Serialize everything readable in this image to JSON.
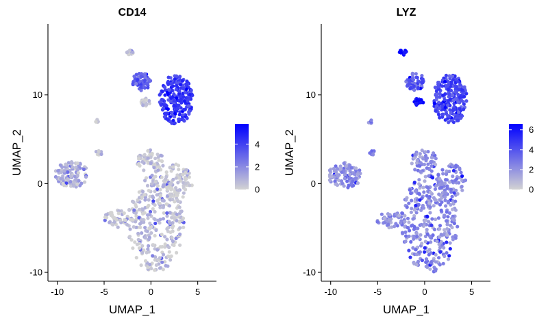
{
  "chart_data": [
    {
      "type": "scatter",
      "title": "CD14",
      "xlabel": "UMAP_1",
      "ylabel": "UMAP_2",
      "xlim": [
        -11,
        7
      ],
      "ylim": [
        -11,
        18
      ],
      "xticks": [
        -10,
        -5,
        0,
        5
      ],
      "xtick_labels": [
        "-10",
        "-5",
        "0",
        "5"
      ],
      "yticks": [
        -10,
        0,
        10
      ],
      "ytick_labels": [
        "-10",
        "0",
        "10"
      ],
      "legend": {
        "placement": "right",
        "min": 0,
        "max": 5.8,
        "ticks": [
          0,
          2,
          4
        ],
        "tick_labels": [
          "0",
          "2",
          "4"
        ],
        "low_color": "#d3d3d3",
        "high_color": "#0000ff"
      },
      "grid": false,
      "clusters": [
        {
          "cx": 0.5,
          "cy": -4.5,
          "rx": 3.0,
          "ry": 5.5,
          "n": 320,
          "expr": 0.05
        },
        {
          "cx": 2.8,
          "cy": 0.0,
          "rx": 1.6,
          "ry": 2.2,
          "n": 80,
          "expr": 0.05
        },
        {
          "cx": -3.5,
          "cy": -4.0,
          "rx": 1.6,
          "ry": 1.0,
          "n": 50,
          "expr": 0.05
        },
        {
          "cx": -8.5,
          "cy": 1.0,
          "rx": 1.8,
          "ry": 1.5,
          "n": 110,
          "expr": 0.15
        },
        {
          "cx": 0.0,
          "cy": 2.5,
          "rx": 1.5,
          "ry": 1.3,
          "n": 60,
          "expr": 0.05
        },
        {
          "cx": 2.7,
          "cy": 9.5,
          "rx": 1.8,
          "ry": 2.8,
          "n": 230,
          "expr": 0.72
        },
        {
          "cx": -1.0,
          "cy": 11.5,
          "rx": 1.0,
          "ry": 1.0,
          "n": 60,
          "expr": 0.55
        },
        {
          "cx": -0.6,
          "cy": 9.2,
          "rx": 0.5,
          "ry": 0.45,
          "n": 18,
          "expr": 0.08
        },
        {
          "cx": -2.3,
          "cy": 14.8,
          "rx": 0.4,
          "ry": 0.3,
          "n": 14,
          "expr": 0.05
        },
        {
          "cx": -5.5,
          "cy": 3.5,
          "rx": 0.4,
          "ry": 0.25,
          "n": 8,
          "expr": 0.05
        },
        {
          "cx": -5.8,
          "cy": 7.0,
          "rx": 0.2,
          "ry": 0.25,
          "n": 5,
          "expr": 0.05
        }
      ]
    },
    {
      "type": "scatter",
      "title": "LYZ",
      "xlabel": "UMAP_1",
      "ylabel": "UMAP_2",
      "xlim": [
        -11,
        7
      ],
      "ylim": [
        -11,
        18
      ],
      "xticks": [
        -10,
        -5,
        0,
        5
      ],
      "xtick_labels": [
        "-10",
        "-5",
        "0",
        "5"
      ],
      "yticks": [
        -10,
        0,
        10
      ],
      "ytick_labels": [
        "-10",
        "0",
        "10"
      ],
      "legend": {
        "placement": "right",
        "min": 0,
        "max": 6.6,
        "ticks": [
          0,
          2,
          4,
          6
        ],
        "tick_labels": [
          "0",
          "2",
          "4",
          "6"
        ],
        "low_color": "#d3d3d3",
        "high_color": "#0000ff"
      },
      "grid": false,
      "clusters": [
        {
          "cx": 0.5,
          "cy": -4.5,
          "rx": 3.0,
          "ry": 5.5,
          "n": 320,
          "expr": 0.32
        },
        {
          "cx": 2.8,
          "cy": 0.0,
          "rx": 1.6,
          "ry": 2.2,
          "n": 80,
          "expr": 0.32
        },
        {
          "cx": -3.5,
          "cy": -4.0,
          "rx": 1.6,
          "ry": 1.0,
          "n": 50,
          "expr": 0.32
        },
        {
          "cx": -8.5,
          "cy": 1.0,
          "rx": 1.8,
          "ry": 1.5,
          "n": 110,
          "expr": 0.32
        },
        {
          "cx": 0.0,
          "cy": 2.5,
          "rx": 1.5,
          "ry": 1.3,
          "n": 60,
          "expr": 0.32
        },
        {
          "cx": 2.7,
          "cy": 9.5,
          "rx": 1.8,
          "ry": 2.8,
          "n": 230,
          "expr": 0.65
        },
        {
          "cx": -1.0,
          "cy": 11.5,
          "rx": 1.0,
          "ry": 1.0,
          "n": 60,
          "expr": 0.55
        },
        {
          "cx": -0.6,
          "cy": 9.2,
          "rx": 0.5,
          "ry": 0.45,
          "n": 18,
          "expr": 0.92
        },
        {
          "cx": -2.3,
          "cy": 14.8,
          "rx": 0.4,
          "ry": 0.3,
          "n": 14,
          "expr": 0.95
        },
        {
          "cx": -5.5,
          "cy": 3.5,
          "rx": 0.4,
          "ry": 0.25,
          "n": 8,
          "expr": 0.35
        },
        {
          "cx": -5.8,
          "cy": 7.0,
          "rx": 0.2,
          "ry": 0.25,
          "n": 5,
          "expr": 0.35
        }
      ]
    }
  ]
}
